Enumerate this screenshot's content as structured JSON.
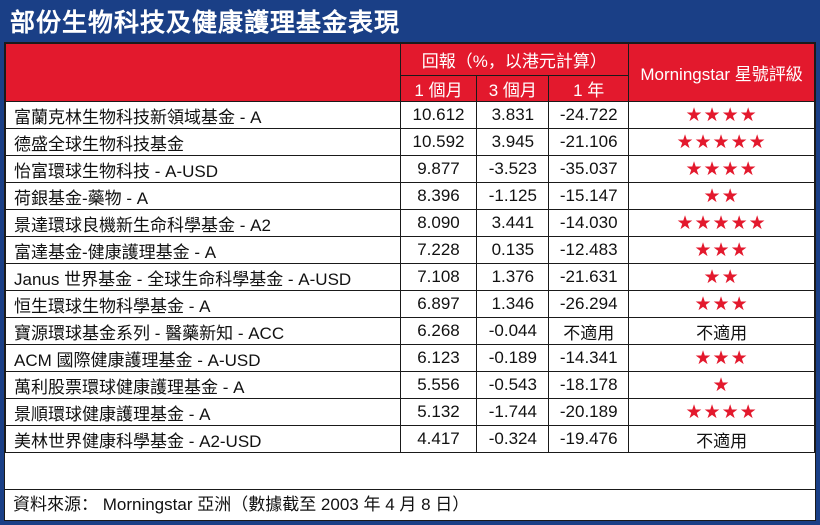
{
  "title": "部份生物科技及健康護理基金表現",
  "header": {
    "returns_group": "回報（%，以港元計算）",
    "col_1m": "1 個月",
    "col_3m": "3 個月",
    "col_1y": "1 年",
    "col_rating": "Morningstar 星號評級"
  },
  "colors": {
    "header_bg": "#e3192d",
    "frame": "#1a3f86",
    "star": "#e3192d"
  },
  "rows": [
    {
      "name": "富蘭克林生物科技新領域基金 - A",
      "m1": "10.612",
      "m3": "3.831",
      "y1": "-24.722",
      "rating": "★★★★"
    },
    {
      "name": "德盛全球生物科技基金",
      "m1": "10.592",
      "m3": "3.945",
      "y1": "-21.106",
      "rating": "★★★★★"
    },
    {
      "name": "怡富環球生物科技 - A-USD",
      "m1": "9.877",
      "m3": "-3.523",
      "y1": "-35.037",
      "rating": "★★★★"
    },
    {
      "name": "荷銀基金-藥物 - A",
      "m1": "8.396",
      "m3": "-1.125",
      "y1": "-15.147",
      "rating": "★★"
    },
    {
      "name": "景達環球良機新生命科學基金 - A2",
      "m1": "8.090",
      "m3": "3.441",
      "y1": "-14.030",
      "rating": "★★★★★"
    },
    {
      "name": "富達基金-健康護理基金 - A",
      "m1": "7.228",
      "m3": "0.135",
      "y1": "-12.483",
      "rating": "★★★"
    },
    {
      "name": "Janus 世界基金 - 全球生命科學基金 - A-USD",
      "m1": "7.108",
      "m3": "1.376",
      "y1": "-21.631",
      "rating": "★★"
    },
    {
      "name": "恒生環球生物科學基金 - A",
      "m1": "6.897",
      "m3": "1.346",
      "y1": "-26.294",
      "rating": "★★★"
    },
    {
      "name": "寶源環球基金系列 - 醫藥新知 - ACC",
      "m1": "6.268",
      "m3": "-0.044",
      "y1": "不適用",
      "rating": "不適用"
    },
    {
      "name": "ACM 國際健康護理基金 - A-USD",
      "m1": "6.123",
      "m3": "-0.189",
      "y1": "-14.341",
      "rating": "★★★"
    },
    {
      "name": "萬利股票環球健康護理基金 - A",
      "m1": "5.556",
      "m3": "-0.543",
      "y1": "-18.178",
      "rating": "★"
    },
    {
      "name": "景順環球健康護理基金 - A",
      "m1": "5.132",
      "m3": "-1.744",
      "y1": "-20.189",
      "rating": "★★★★"
    },
    {
      "name": "美林世界健康科學基金 - A2-USD",
      "m1": "4.417",
      "m3": "-0.324",
      "y1": "-19.476",
      "rating": "不適用"
    }
  ],
  "source": "資料來源： Morningstar 亞洲（數據截至 2003 年 4 月 8 日）"
}
